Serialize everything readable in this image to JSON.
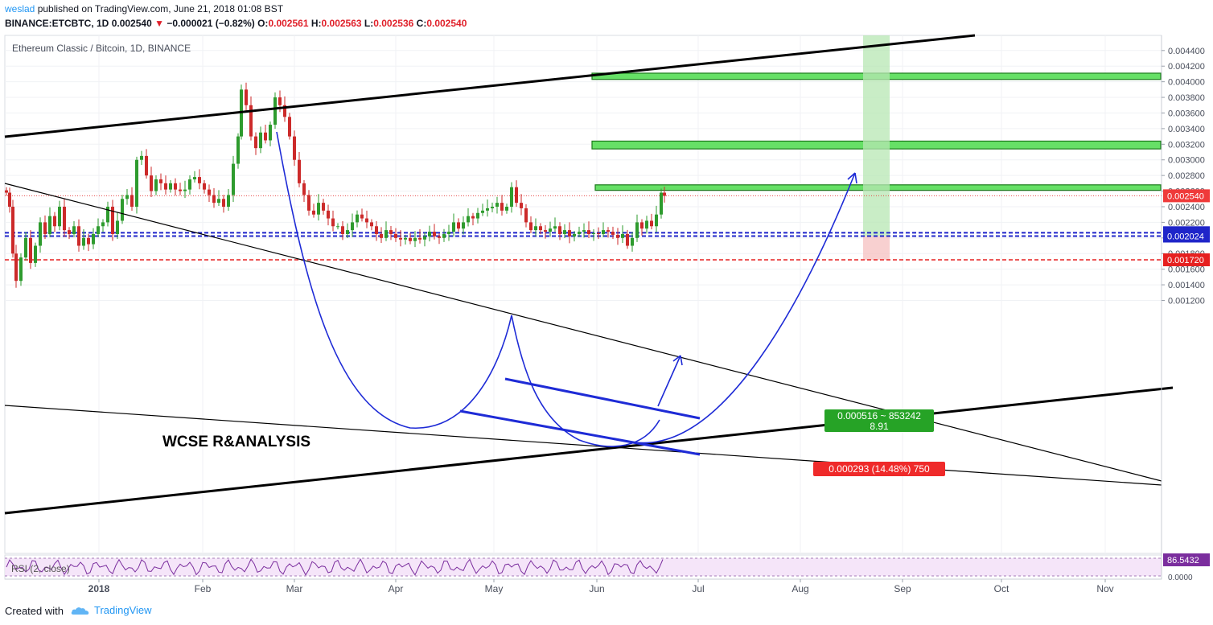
{
  "header": {
    "author": "weslad",
    "published_text": "published on TradingView.com, June 21, 2018 01:08 BST",
    "symbol": "BINANCE:ETCBTC, 1D",
    "last": "0.002540",
    "change": "−0.000021 (−0.82%)",
    "open_label": "O:",
    "open": "0.002561",
    "high_label": "H:",
    "high": "0.002563",
    "low_label": "L:",
    "low": "0.002536",
    "close_label": "C:",
    "close": "0.002540"
  },
  "chart_title": "Ethereum Classic / Bitcoin, 1D, BINANCE",
  "annotation_text": "WCSE R&ANALYSIS",
  "rsi": {
    "label": "RSI (2, close)",
    "value_label": "86.5432",
    "zero_label": "0.0000"
  },
  "price_tags": {
    "current": "0.002540",
    "entry_upper": "0.002067",
    "entry": "0.002024",
    "stop": "0.001720"
  },
  "position_boxes": {
    "target_line1": "0.000516 ~ 853242",
    "target_line2": "8.91",
    "stop_text": "0.000293 (14.48%) 750"
  },
  "footer": {
    "created_with": "Created with",
    "brand": "TradingView"
  },
  "colors": {
    "up": "#2e9b2e",
    "down": "#cc2a2a",
    "green_zone": "#66e066",
    "blue_line": "#1e2bd6",
    "rsi": "#7b2e9e",
    "target_box": "#26a326",
    "stop_box": "#ef2a2a"
  },
  "chart_data": {
    "type": "candlestick",
    "y_axis": {
      "range": [
        0.00108,
        0.00448
      ],
      "ticks": [
        "0.004400",
        "0.004200",
        "0.004000",
        "0.003800",
        "0.003600",
        "0.003400",
        "0.003200",
        "0.003000",
        "0.002800",
        "0.002600",
        "0.002400",
        "0.002200",
        "0.002000",
        "0.001800",
        "0.001600",
        "0.001400",
        "0.001200"
      ]
    },
    "x_axis": {
      "labels": [
        "2018",
        "Feb",
        "Mar",
        "Apr",
        "May",
        "Jun",
        "Jul",
        "Aug",
        "Sep",
        "Oct",
        "Nov"
      ]
    },
    "horizontal_levels": [
      {
        "name": "current-price",
        "value": 0.00254
      },
      {
        "name": "entry-upper",
        "value": 0.002067
      },
      {
        "name": "entry",
        "value": 0.002024
      },
      {
        "name": "stop",
        "value": 0.00172
      }
    ],
    "resistance_zones": [
      {
        "low": 0.00403,
        "high": 0.00411
      },
      {
        "low": 0.00314,
        "high": 0.00324
      },
      {
        "low": 0.00261,
        "high": 0.00268
      }
    ]
  }
}
